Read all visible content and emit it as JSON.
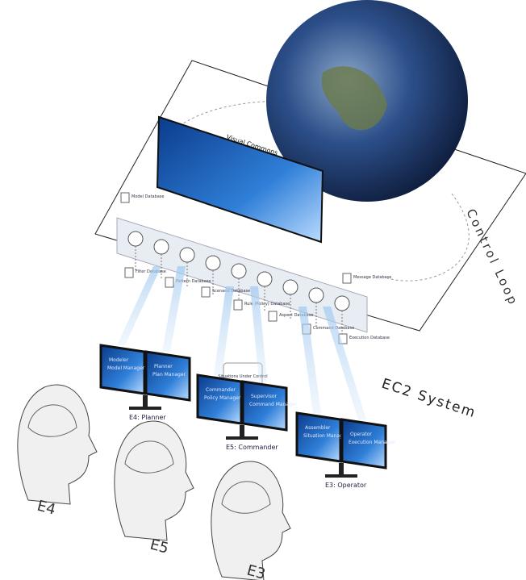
{
  "visual_commons": {
    "title": "Visual Commons"
  },
  "control_loop": "Control Loop",
  "system": "EC2 System",
  "situations": "Situations Under Control",
  "databases": [
    "Model Database",
    "Filter Database",
    "Pattern Database",
    "Scenario Database",
    "Rule (Policy) Database",
    "Aspect Database",
    "Command Database",
    "Execution Database",
    "Message Database"
  ],
  "stations": [
    {
      "label": "E4: Planner",
      "monitors": [
        {
          "role": "Modeler",
          "tool": "Model Manager"
        },
        {
          "role": "Planner",
          "tool": "Plan Manager"
        }
      ]
    },
    {
      "label": "E5: Commander",
      "monitors": [
        {
          "role": "Commander",
          "tool": "Policy Manager"
        },
        {
          "role": "Supervisor",
          "tool": "Command Manager"
        }
      ]
    },
    {
      "label": "E3: Operator",
      "monitors": [
        {
          "role": "Assembler",
          "tool": "Situation Manager"
        },
        {
          "role": "Operator",
          "tool": "Execution Manager"
        }
      ]
    }
  ],
  "heads": [
    "E4",
    "E5",
    "E3"
  ]
}
